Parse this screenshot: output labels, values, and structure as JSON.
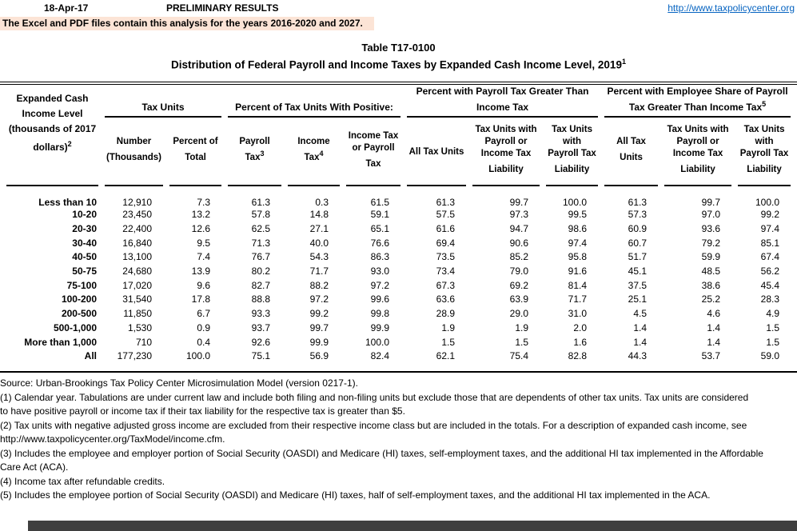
{
  "colors": {
    "highlight_bg": "#FCE4D6",
    "link_blue": "#0563C1",
    "bottom_bar": "#3F3F3F",
    "text": "#000000"
  },
  "header": {
    "date": "18-Apr-17",
    "status": "PRELIMINARY RESULTS",
    "link": "http://www.taxpolicycenter.org",
    "notice": "The Excel and PDF files contain this analysis for the years 2016-2020 and 2027."
  },
  "title": {
    "line1": "Table T17-0100",
    "line2": "Distribution of Federal Payroll and Income Taxes by Expanded Cash Income Level, 2019",
    "line2_sup": "1"
  },
  "table": {
    "corner_header": {
      "label": "Expanded Cash Income Level (thousands of 2017 dollars)",
      "sup": "2"
    },
    "groups": [
      {
        "label": "Tax Units",
        "sup": ""
      },
      {
        "label": "Percent of Tax Units With Positive:",
        "sup": ""
      },
      {
        "label": "Percent with Payroll Tax Greater Than Income Tax",
        "sup": ""
      },
      {
        "label": "Percent with Employee Share of Payroll Tax Greater Than Income Tax",
        "sup": "5"
      }
    ],
    "columns": [
      {
        "label": "Number (Thousands)",
        "sup": ""
      },
      {
        "label": "Percent of Total",
        "sup": ""
      },
      {
        "label": "Payroll Tax",
        "sup": "3"
      },
      {
        "label": "Income Tax",
        "sup": "4"
      },
      {
        "label": "Income Tax or Payroll Tax",
        "sup": ""
      },
      {
        "label": "All Tax Units",
        "sup": ""
      },
      {
        "label": "Tax Units with Payroll or Income Tax Liability",
        "sup": ""
      },
      {
        "label": "Tax Units with Payroll Tax Liability",
        "sup": ""
      },
      {
        "label": "All Tax Units",
        "sup": ""
      },
      {
        "label": "Tax Units with Payroll or Income Tax Liability",
        "sup": ""
      },
      {
        "label": "Tax Units with Payroll Tax Liability",
        "sup": ""
      }
    ],
    "rows": [
      {
        "label": "Less than 10",
        "values": [
          "12,910",
          "7.3",
          "61.3",
          "0.3",
          "61.5",
          "61.3",
          "99.7",
          "100.0",
          "61.3",
          "99.7",
          "100.0"
        ]
      },
      {
        "label": "10-20",
        "values": [
          "23,450",
          "13.2",
          "57.8",
          "14.8",
          "59.1",
          "57.5",
          "97.3",
          "99.5",
          "57.3",
          "97.0",
          "99.2"
        ]
      },
      {
        "label": "20-30",
        "values": [
          "22,400",
          "12.6",
          "62.5",
          "27.1",
          "65.1",
          "61.6",
          "94.7",
          "98.6",
          "60.9",
          "93.6",
          "97.4"
        ]
      },
      {
        "label": "30-40",
        "values": [
          "16,840",
          "9.5",
          "71.3",
          "40.0",
          "76.6",
          "69.4",
          "90.6",
          "97.4",
          "60.7",
          "79.2",
          "85.1"
        ]
      },
      {
        "label": "40-50",
        "values": [
          "13,100",
          "7.4",
          "76.7",
          "54.3",
          "86.3",
          "73.5",
          "85.2",
          "95.8",
          "51.7",
          "59.9",
          "67.4"
        ]
      },
      {
        "label": "50-75",
        "values": [
          "24,680",
          "13.9",
          "80.2",
          "71.7",
          "93.0",
          "73.4",
          "79.0",
          "91.6",
          "45.1",
          "48.5",
          "56.2"
        ]
      },
      {
        "label": "75-100",
        "values": [
          "17,020",
          "9.6",
          "82.7",
          "88.2",
          "97.2",
          "67.3",
          "69.2",
          "81.4",
          "37.5",
          "38.6",
          "45.4"
        ]
      },
      {
        "label": "100-200",
        "values": [
          "31,540",
          "17.8",
          "88.8",
          "97.2",
          "99.6",
          "63.6",
          "63.9",
          "71.7",
          "25.1",
          "25.2",
          "28.3"
        ]
      },
      {
        "label": "200-500",
        "values": [
          "11,850",
          "6.7",
          "93.3",
          "99.2",
          "99.8",
          "28.9",
          "29.0",
          "31.0",
          "4.5",
          "4.6",
          "4.9"
        ]
      },
      {
        "label": "500-1,000",
        "values": [
          "1,530",
          "0.9",
          "93.7",
          "99.7",
          "99.9",
          "1.9",
          "1.9",
          "2.0",
          "1.4",
          "1.4",
          "1.5"
        ]
      },
      {
        "label": "More than 1,000",
        "values": [
          "710",
          "0.4",
          "92.6",
          "99.9",
          "100.0",
          "1.5",
          "1.5",
          "1.6",
          "1.4",
          "1.4",
          "1.5"
        ]
      },
      {
        "label": "All",
        "values": [
          "177,230",
          "100.0",
          "75.1",
          "56.9",
          "82.4",
          "62.1",
          "75.4",
          "82.8",
          "44.3",
          "53.7",
          "59.0"
        ]
      }
    ]
  },
  "footnote_lines": [
    "Source: Urban-Brookings Tax Policy Center Microsimulation Model (version 0217-1).",
    "(1) Calendar year. Tabulations are under current law and include both filing and non-filing units but exclude those that are dependents of other tax units.  Tax units are considered",
    "to have positive payroll or income tax if their tax liability for the respective tax is greater than $5.",
    "(2) Tax units with negative adjusted gross income are excluded from their respective income class but are included in the totals. For a description of expanded cash income, see",
    "http://www.taxpolicycenter.org/TaxModel/income.cfm.",
    "(3) Includes the employee and employer portion of Social Security (OASDI) and Medicare (HI) taxes, self-employment taxes, and the additional HI tax implemented in the Affordable",
    "Care Act (ACA).",
    "(4) Income tax after refundable credits.",
    "(5) Includes the employee portion of Social Security (OASDI) and Medicare (HI) taxes, half of self-employment taxes, and the additional HI tax implemented in the ACA."
  ]
}
